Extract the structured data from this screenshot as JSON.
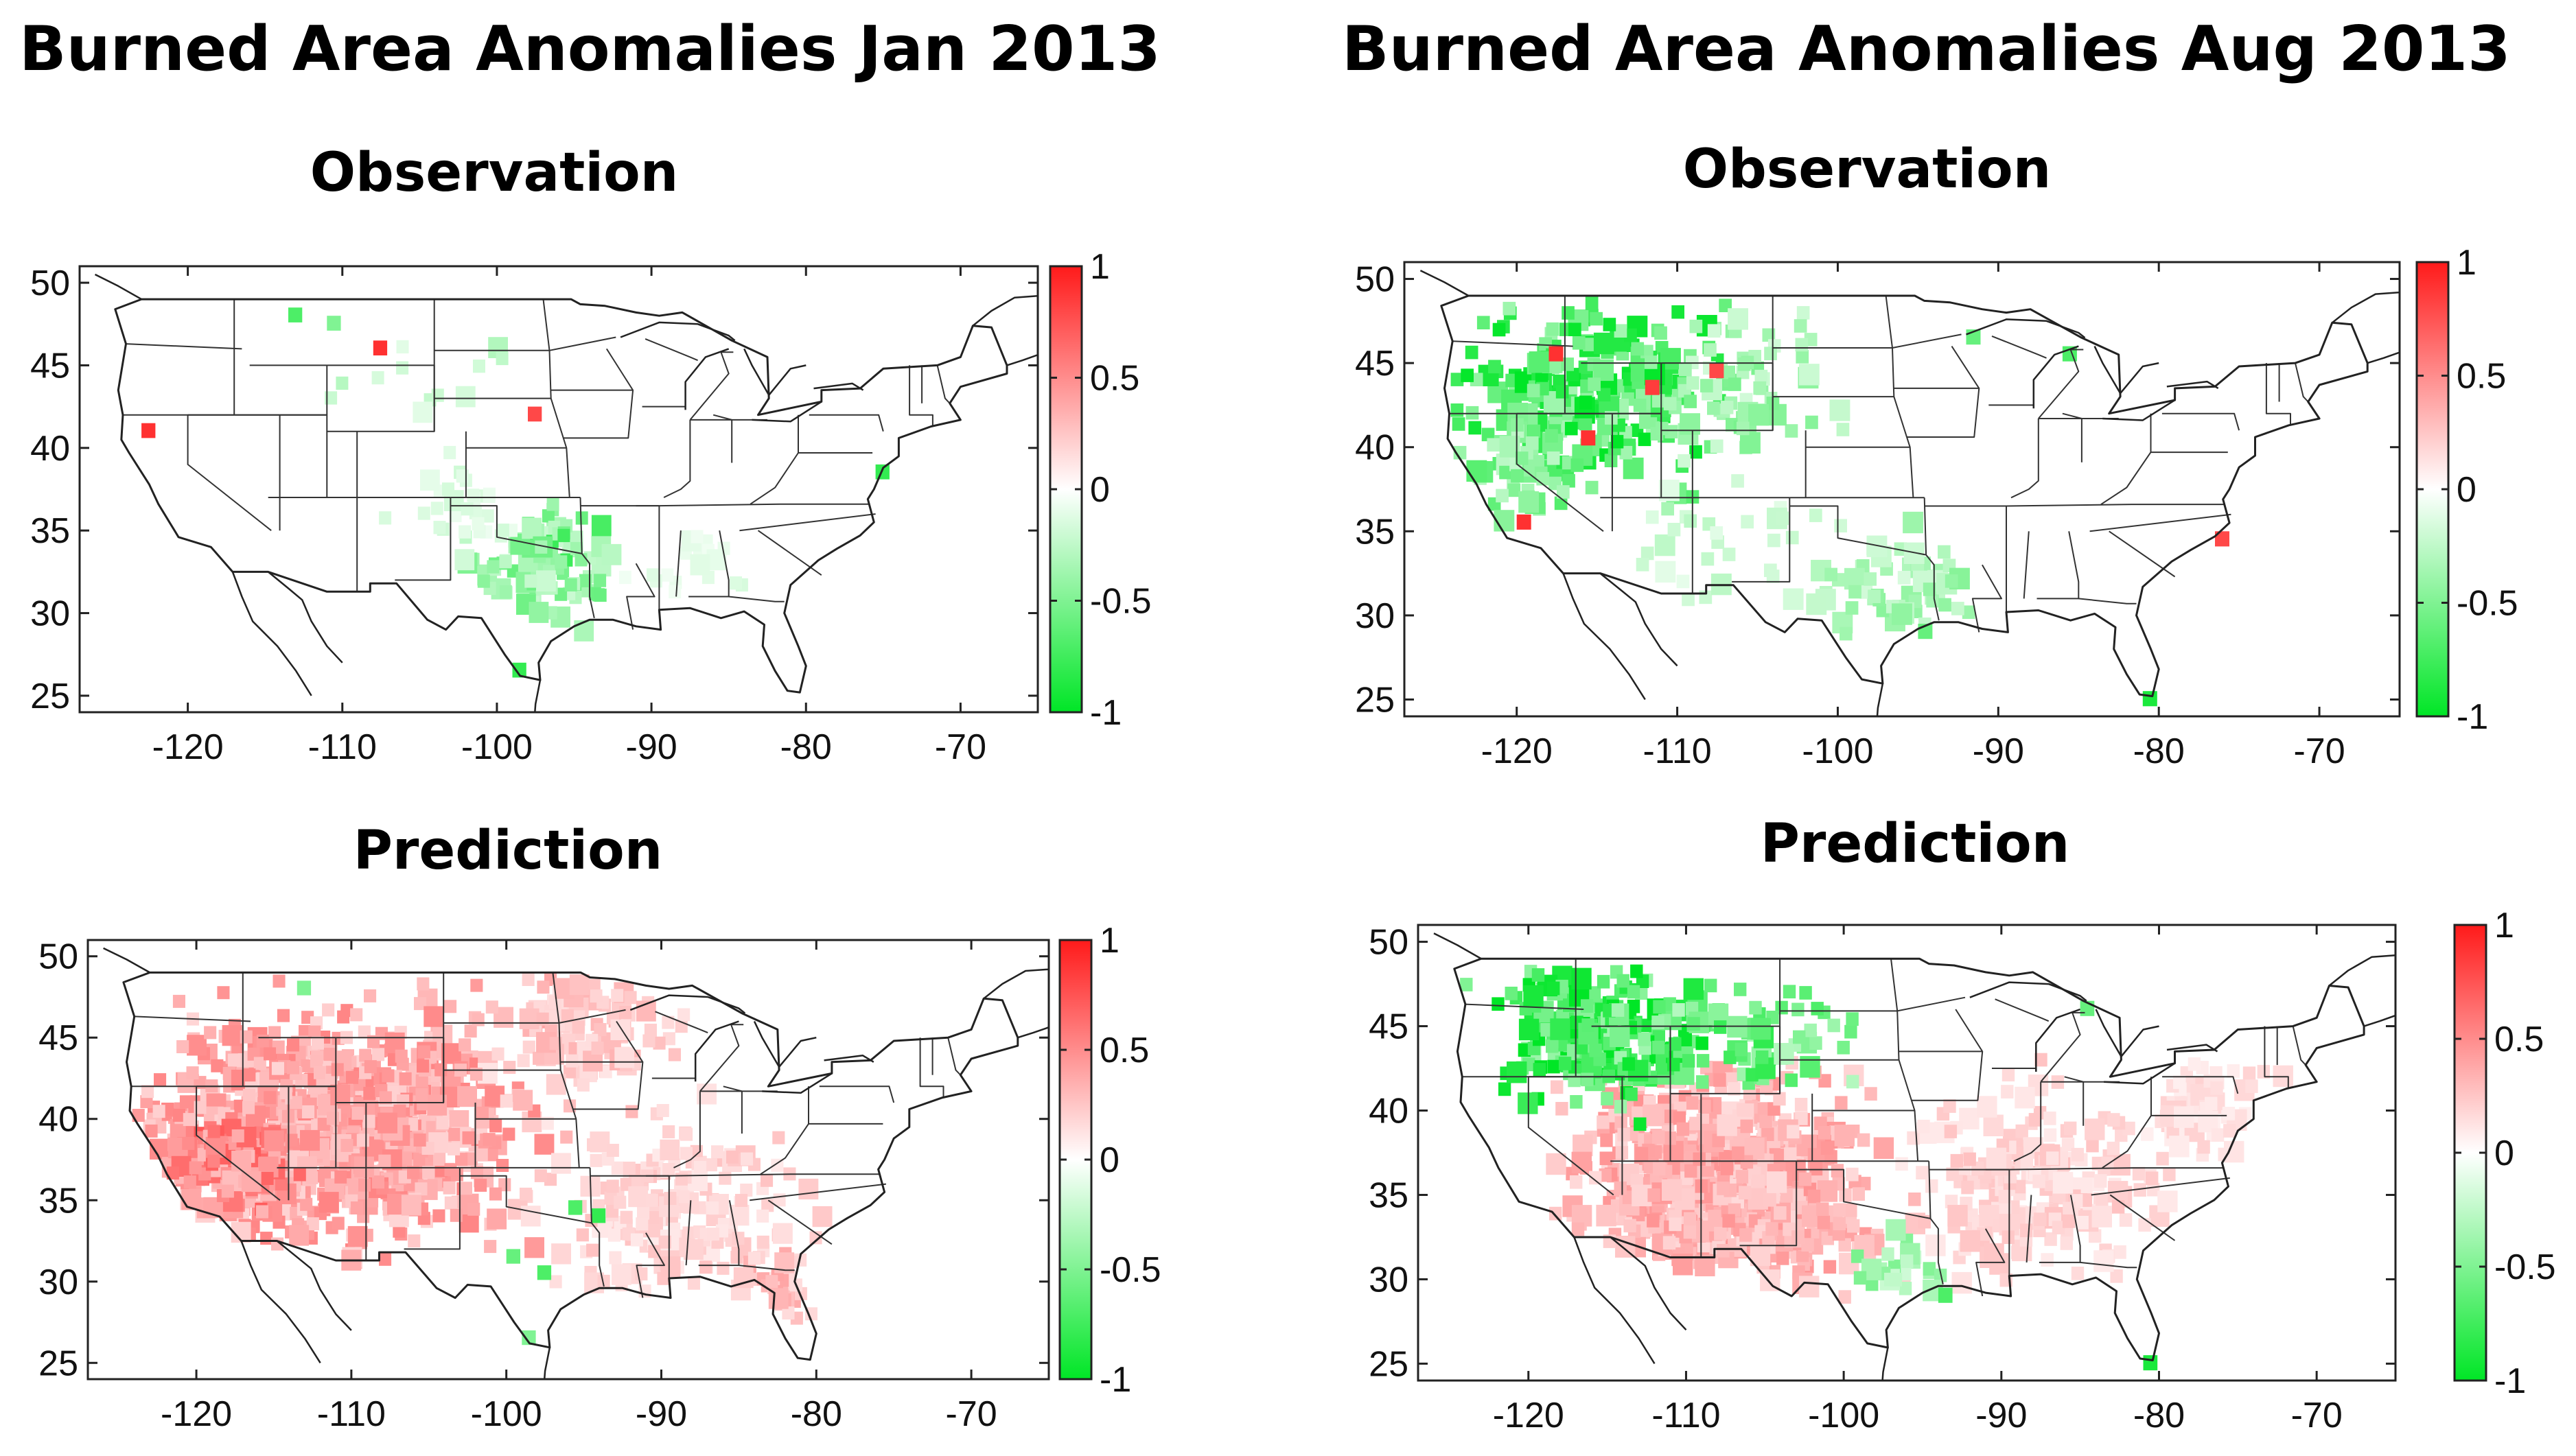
{
  "figure": {
    "jan": {
      "title": "Burned Area Anomalies Jan 2013"
    },
    "aug": {
      "title": "Burned Area Anomalies Aug 2013"
    }
  },
  "panel_titles": {
    "observation": "Observation",
    "prediction": "Prediction"
  },
  "chart_data": [
    {
      "type": "heatmap",
      "id": "jan-observation",
      "title": "Observation",
      "group_title": "Burned Area Anomalies Jan 2013",
      "xlim": [
        -127,
        -65
      ],
      "ylim": [
        24,
        51
      ],
      "xticks": [
        -120,
        -110,
        -100,
        -90,
        -80,
        -70
      ],
      "yticks": [
        25,
        30,
        35,
        40,
        45,
        50
      ],
      "colorbar": {
        "range": [
          -1,
          1
        ],
        "ticks": [
          -1,
          -0.5,
          0,
          0.5,
          1
        ],
        "low_color": "#00e626",
        "mid_color": "#ffffff",
        "high_color": "#ff1a1a"
      },
      "regions": [
        {
          "lon": -98,
          "lat": 33,
          "spread": 4.5,
          "value": -0.45,
          "count": 70
        },
        {
          "lon": -96,
          "lat": 35,
          "spread": 2.5,
          "value": -0.6,
          "count": 25
        },
        {
          "lon": -103,
          "lat": 37,
          "spread": 4,
          "value": -0.15,
          "count": 30
        },
        {
          "lon": -88,
          "lat": 33,
          "spread": 4,
          "value": -0.12,
          "count": 18
        },
        {
          "lon": -104,
          "lat": 44,
          "spread": 8,
          "value": -0.25,
          "count": 12
        }
      ],
      "spots": [
        {
          "lon": -113.5,
          "lat": 48.5,
          "value": -0.7
        },
        {
          "lon": -111,
          "lat": 48,
          "value": -0.5
        },
        {
          "lon": -99,
          "lat": 27,
          "value": -0.8
        },
        {
          "lon": -75.5,
          "lat": 39,
          "value": -0.8
        },
        {
          "lon": -123,
          "lat": 41.5,
          "value": 0.9
        },
        {
          "lon": -108,
          "lat": 46.5,
          "value": 0.9
        },
        {
          "lon": -98,
          "lat": 42.5,
          "value": 0.8
        }
      ]
    },
    {
      "type": "heatmap",
      "id": "aug-observation",
      "title": "Observation",
      "group_title": "Burned Area Anomalies Aug 2013",
      "xlim": [
        -127,
        -65
      ],
      "ylim": [
        24,
        51
      ],
      "xticks": [
        -120,
        -110,
        -100,
        -90,
        -80,
        -70
      ],
      "yticks": [
        25,
        30,
        35,
        40,
        45,
        50
      ],
      "colorbar": {
        "range": [
          -1,
          1
        ],
        "ticks": [
          -1,
          -0.5,
          0,
          0.5,
          1
        ],
        "low_color": "#00e626",
        "mid_color": "#ffffff",
        "high_color": "#ff1a1a"
      },
      "regions": [
        {
          "lon": -116,
          "lat": 44,
          "spread": 8,
          "value": -0.75,
          "count": 230
        },
        {
          "lon": -107,
          "lat": 44,
          "spread": 6,
          "value": -0.4,
          "count": 70
        },
        {
          "lon": -120,
          "lat": 39,
          "spread": 4,
          "value": -0.5,
          "count": 40
        },
        {
          "lon": -97,
          "lat": 32,
          "spread": 5,
          "value": -0.35,
          "count": 60
        },
        {
          "lon": -108,
          "lat": 34,
          "spread": 6,
          "value": -0.2,
          "count": 30
        }
      ],
      "spots": [
        {
          "lon": -81,
          "lat": 25.5,
          "value": -0.9
        },
        {
          "lon": -92,
          "lat": 47,
          "value": -0.6
        },
        {
          "lon": -86,
          "lat": 46,
          "value": -0.7
        },
        {
          "lon": -95,
          "lat": 29.5,
          "value": -0.6
        },
        {
          "lon": -118,
          "lat": 46,
          "value": 0.9
        },
        {
          "lon": -112,
          "lat": 44,
          "value": 0.85
        },
        {
          "lon": -116,
          "lat": 41,
          "value": 0.9
        },
        {
          "lon": -108,
          "lat": 45,
          "value": 0.8
        },
        {
          "lon": -120,
          "lat": 36,
          "value": 0.9
        },
        {
          "lon": -76.5,
          "lat": 35,
          "value": 0.8
        }
      ]
    },
    {
      "type": "heatmap",
      "id": "jan-prediction",
      "title": "Prediction",
      "group_title": "Burned Area Anomalies Jan 2013",
      "xlim": [
        -127,
        -65
      ],
      "ylim": [
        24,
        51
      ],
      "xticks": [
        -120,
        -110,
        -100,
        -90,
        -80,
        -70
      ],
      "yticks": [
        25,
        30,
        35,
        40,
        45,
        50
      ],
      "colorbar": {
        "range": [
          -1,
          1
        ],
        "ticks": [
          -1,
          -0.5,
          0,
          0.5,
          1
        ],
        "low_color": "#00e626",
        "mid_color": "#ffffff",
        "high_color": "#ff1a1a"
      },
      "regions": [
        {
          "lon": -112,
          "lat": 40,
          "spread": 11,
          "value": 0.4,
          "count": 900
        },
        {
          "lon": -118,
          "lat": 38,
          "spread": 4,
          "value": 0.55,
          "count": 120
        },
        {
          "lon": -90,
          "lat": 35,
          "spread": 8,
          "value": 0.2,
          "count": 200
        },
        {
          "lon": -96,
          "lat": 46,
          "spread": 6,
          "value": 0.25,
          "count": 120
        },
        {
          "lon": -83,
          "lat": 30,
          "spread": 3,
          "value": 0.3,
          "count": 40
        }
      ],
      "spots": [
        {
          "lon": -96,
          "lat": 35,
          "value": -0.7
        },
        {
          "lon": -94.5,
          "lat": 34.5,
          "value": -0.8
        },
        {
          "lon": -100,
          "lat": 32,
          "value": -0.6
        },
        {
          "lon": -98,
          "lat": 31,
          "value": -0.7
        },
        {
          "lon": -113.5,
          "lat": 48.5,
          "value": -0.5
        },
        {
          "lon": -99,
          "lat": 27,
          "value": -0.5
        }
      ]
    },
    {
      "type": "heatmap",
      "id": "aug-prediction",
      "title": "Prediction",
      "group_title": "Burned Area Anomalies Aug 2013",
      "xlim": [
        -127,
        -65
      ],
      "ylim": [
        24,
        51
      ],
      "xticks": [
        -120,
        -110,
        -100,
        -90,
        -80,
        -70
      ],
      "yticks": [
        25,
        30,
        35,
        40,
        45,
        50
      ],
      "colorbar": {
        "range": [
          -1,
          1
        ],
        "ticks": [
          -1,
          -0.5,
          0,
          0.5,
          1
        ],
        "low_color": "#00e626",
        "mid_color": "#ffffff",
        "high_color": "#ff1a1a"
      },
      "regions": [
        {
          "lon": -108,
          "lat": 36,
          "spread": 9,
          "value": 0.35,
          "count": 700
        },
        {
          "lon": -88,
          "lat": 36,
          "spread": 8,
          "value": 0.2,
          "count": 220
        },
        {
          "lon": -77,
          "lat": 41,
          "spread": 4,
          "value": 0.15,
          "count": 60
        },
        {
          "lon": -116,
          "lat": 45,
          "spread": 6,
          "value": -0.8,
          "count": 240
        },
        {
          "lon": -106,
          "lat": 45,
          "spread": 5,
          "value": -0.6,
          "count": 60
        },
        {
          "lon": -96,
          "lat": 31,
          "spread": 3,
          "value": -0.4,
          "count": 25
        }
      ],
      "spots": [
        {
          "lon": -81,
          "lat": 25.5,
          "value": -0.9
        },
        {
          "lon": -85,
          "lat": 46.5,
          "value": -0.6
        },
        {
          "lon": -94,
          "lat": 29.5,
          "value": -0.7
        }
      ]
    }
  ]
}
